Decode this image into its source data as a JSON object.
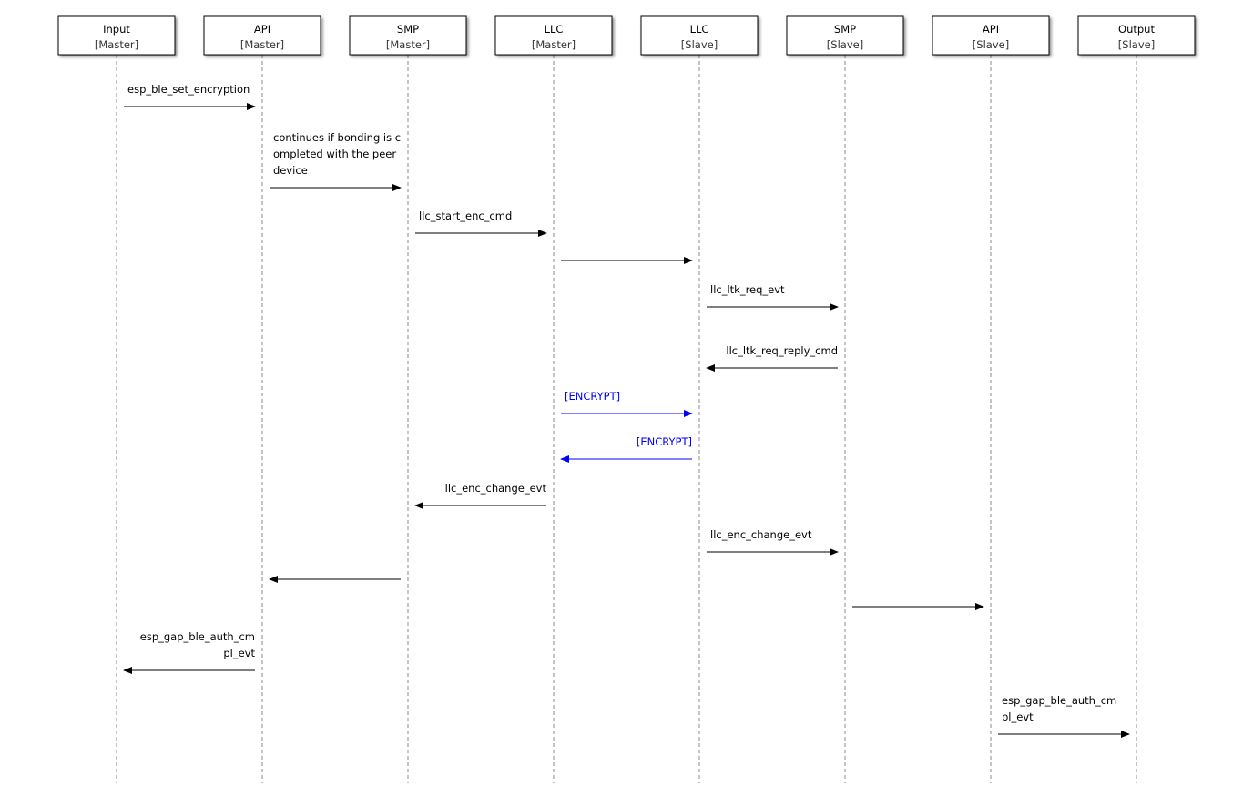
{
  "participants": [
    {
      "name": "Input",
      "role": "[Master]"
    },
    {
      "name": "API",
      "role": "[Master]"
    },
    {
      "name": "SMP",
      "role": "[Master]"
    },
    {
      "name": "LLC",
      "role": "[Master]"
    },
    {
      "name": "LLC",
      "role": "[Slave]"
    },
    {
      "name": "SMP",
      "role": "[Slave]"
    },
    {
      "name": "API",
      "role": "[Slave]"
    },
    {
      "name": "Output",
      "role": "[Slave]"
    }
  ],
  "colors": {
    "default": "#000000",
    "encrypt": "#0000ff"
  },
  "messages": [
    {
      "from": 0,
      "to": 1,
      "lines": [
        "esp_ble_set_encryption"
      ],
      "color": "default"
    },
    {
      "from": 1,
      "to": 2,
      "lines": [
        "continues if bonding is c",
        "ompleted with the peer",
        "device"
      ],
      "color": "default"
    },
    {
      "from": 2,
      "to": 3,
      "lines": [
        "llc_start_enc_cmd"
      ],
      "color": "default"
    },
    {
      "from": 3,
      "to": 4,
      "lines": [],
      "color": "default"
    },
    {
      "from": 4,
      "to": 5,
      "lines": [
        "llc_ltk_req_evt"
      ],
      "color": "default"
    },
    {
      "from": 5,
      "to": 4,
      "lines": [
        "llc_ltk_req_reply_cmd"
      ],
      "color": "default"
    },
    {
      "from": 3,
      "to": 4,
      "lines": [
        "[ENCRYPT]"
      ],
      "color": "encrypt"
    },
    {
      "from": 4,
      "to": 3,
      "lines": [
        "[ENCRYPT]"
      ],
      "color": "encrypt"
    },
    {
      "from": 3,
      "to": 2,
      "lines": [
        "llc_enc_change_evt"
      ],
      "color": "default"
    },
    {
      "from": 4,
      "to": 5,
      "lines": [
        "llc_enc_change_evt"
      ],
      "color": "default"
    },
    {
      "from": 2,
      "to": 1,
      "lines": [],
      "color": "default"
    },
    {
      "from": 5,
      "to": 6,
      "lines": [],
      "color": "default"
    },
    {
      "from": 1,
      "to": 0,
      "lines": [
        "esp_gap_ble_auth_cm",
        "pl_evt"
      ],
      "color": "default"
    },
    {
      "from": 6,
      "to": 7,
      "lines": [
        "esp_gap_ble_auth_cm",
        "pl_evt"
      ],
      "color": "default"
    }
  ]
}
